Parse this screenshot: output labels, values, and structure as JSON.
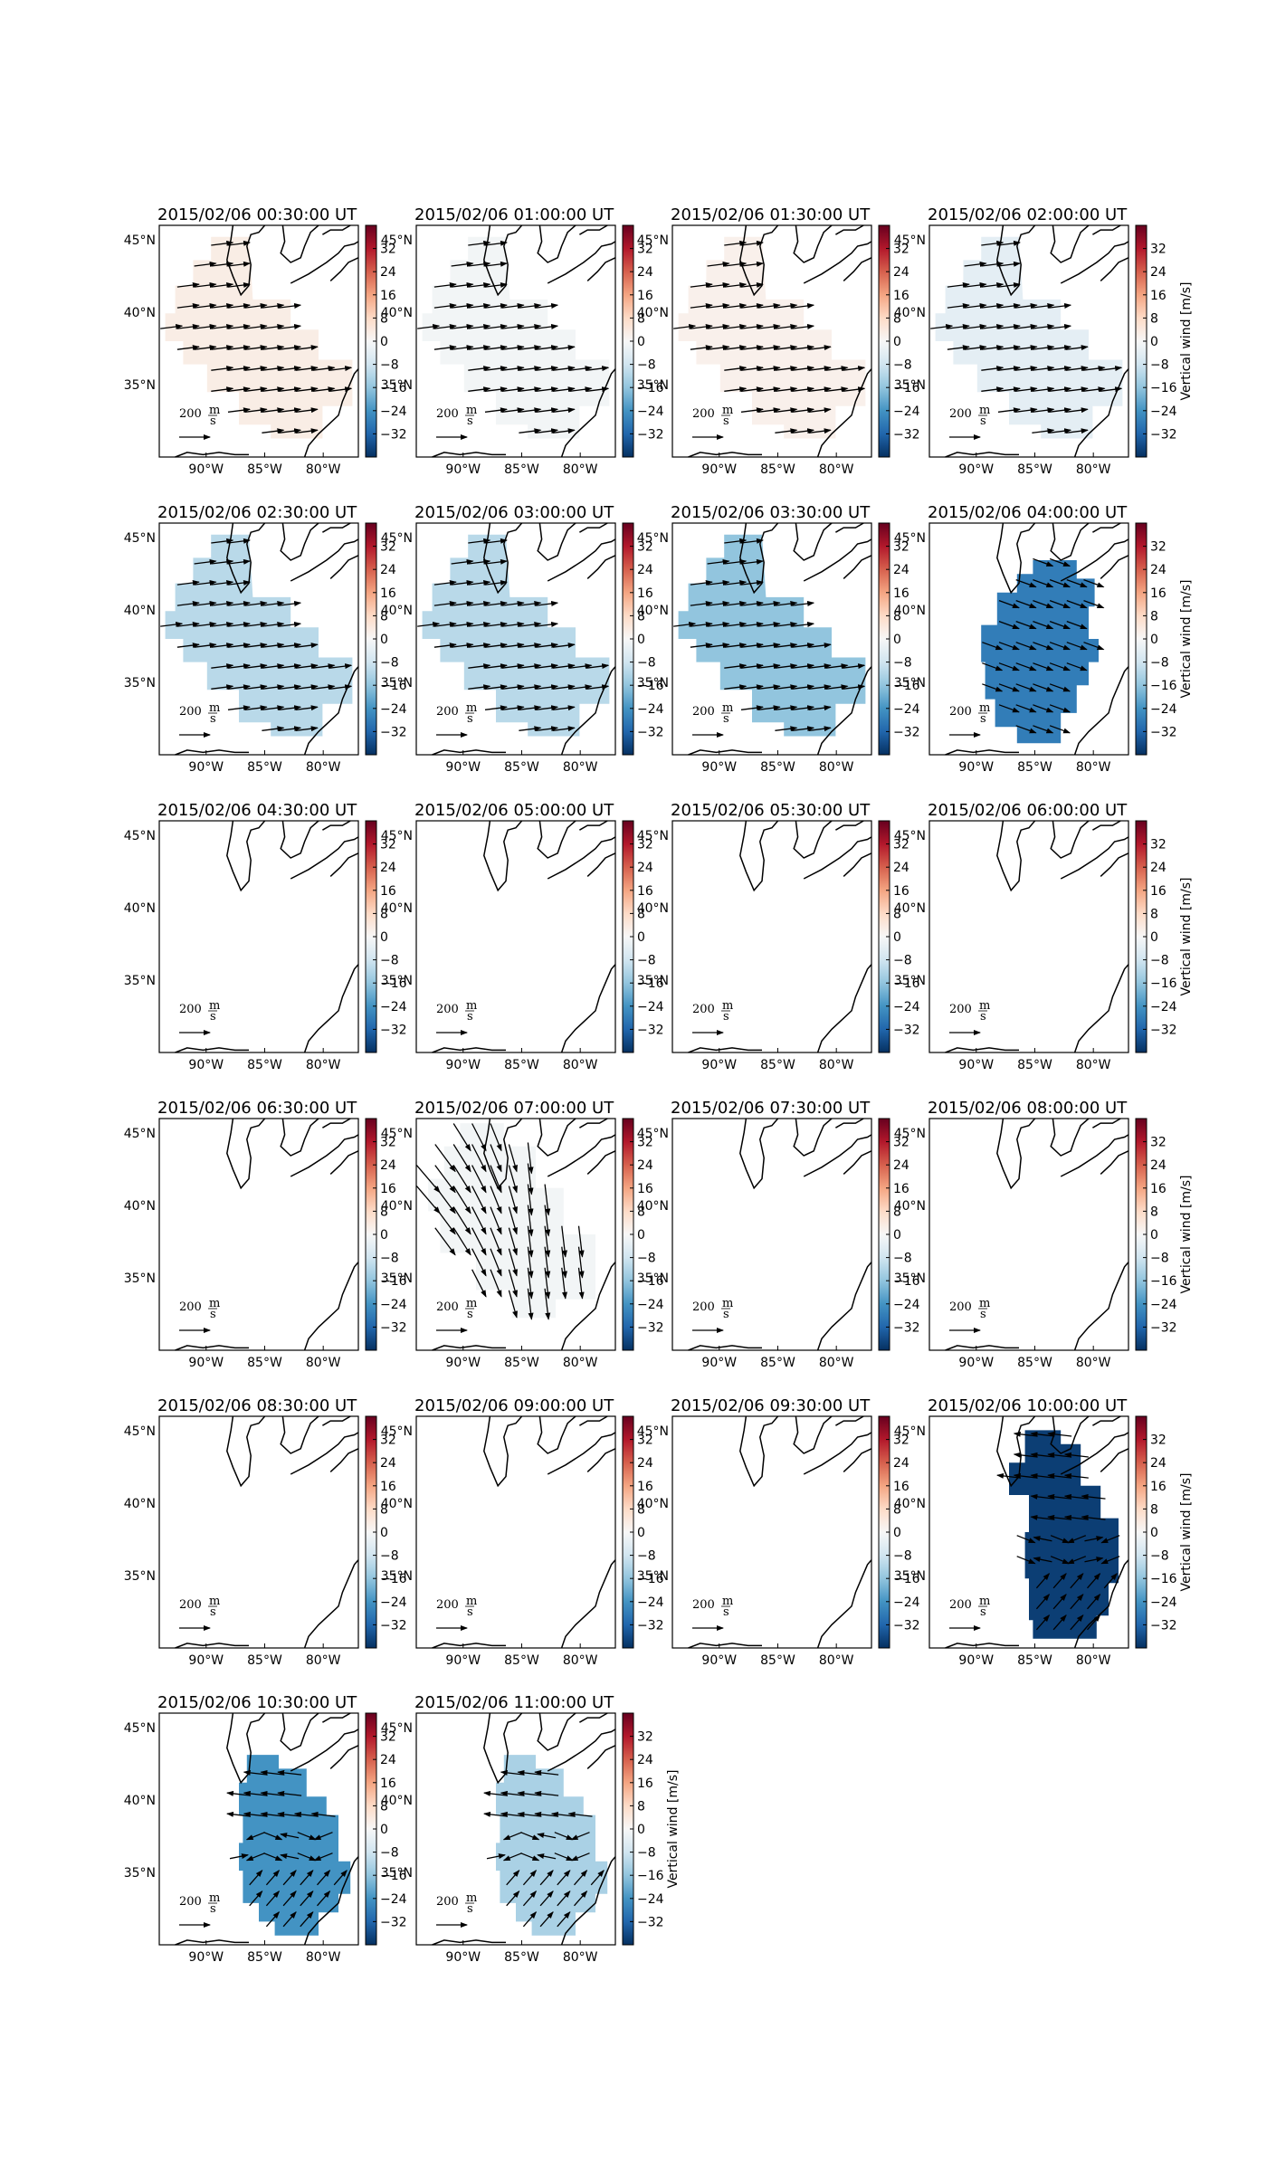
{
  "figure": {
    "colorbar_label": "Vertical wind [m/s]",
    "colorbar_ticks": [
      "32",
      "24",
      "16",
      "8",
      "0",
      "−8",
      "−16",
      "−24",
      "−32"
    ],
    "lon_ticks": [
      "90°W",
      "85°W",
      "80°W"
    ],
    "lat_ticks": [
      "45°N",
      "40°N",
      "35°N"
    ],
    "overlap_labels": [
      "45°N",
      "40°N",
      "35°N"
    ],
    "reference_vector": {
      "magnitude": "200",
      "unit_num": "m",
      "unit_den": "s"
    },
    "colormap": "RdBu_r",
    "colorbar_range": [
      -40,
      40
    ]
  },
  "chart_data": {
    "type": "heatmap",
    "projection": "lat-lon map with coastlines",
    "lon_range": [
      -94,
      -77
    ],
    "lat_range": [
      30,
      46
    ],
    "quantity": "Vertical wind [m/s]",
    "panels": [
      {
        "title": "2015/02/06 00:30:00 UT",
        "value": 3,
        "region": "A",
        "arrows": "east"
      },
      {
        "title": "2015/02/06 01:00:00 UT",
        "value": -1,
        "region": "A",
        "arrows": "east"
      },
      {
        "title": "2015/02/06 01:30:00 UT",
        "value": 2,
        "region": "A",
        "arrows": "east"
      },
      {
        "title": "2015/02/06 02:00:00 UT",
        "value": -4,
        "region": "A",
        "arrows": "east"
      },
      {
        "title": "2015/02/06 02:30:00 UT",
        "value": -11,
        "region": "A",
        "arrows": "east"
      },
      {
        "title": "2015/02/06 03:00:00 UT",
        "value": -11,
        "region": "A",
        "arrows": "east"
      },
      {
        "title": "2015/02/06 03:30:00 UT",
        "value": -16,
        "region": "A",
        "arrows": "east"
      },
      {
        "title": "2015/02/06 04:00:00 UT",
        "value": -28,
        "region": "B",
        "arrows": "southeast"
      },
      {
        "title": "2015/02/06 04:30:00 UT",
        "value": null,
        "region": "none",
        "arrows": "none"
      },
      {
        "title": "2015/02/06 05:00:00 UT",
        "value": null,
        "region": "none",
        "arrows": "none"
      },
      {
        "title": "2015/02/06 05:30:00 UT",
        "value": null,
        "region": "none",
        "arrows": "none"
      },
      {
        "title": "2015/02/06 06:00:00 UT",
        "value": null,
        "region": "none",
        "arrows": "none"
      },
      {
        "title": "2015/02/06 06:30:00 UT",
        "value": null,
        "region": "none",
        "arrows": "none"
      },
      {
        "title": "2015/02/06 07:00:00 UT",
        "value": -1,
        "region": "D",
        "arrows": "south-long"
      },
      {
        "title": "2015/02/06 07:30:00 UT",
        "value": null,
        "region": "none",
        "arrows": "none"
      },
      {
        "title": "2015/02/06 08:00:00 UT",
        "value": null,
        "region": "none",
        "arrows": "none"
      },
      {
        "title": "2015/02/06 08:30:00 UT",
        "value": null,
        "region": "none",
        "arrows": "none"
      },
      {
        "title": "2015/02/06 09:00:00 UT",
        "value": null,
        "region": "none",
        "arrows": "none"
      },
      {
        "title": "2015/02/06 09:30:00 UT",
        "value": null,
        "region": "none",
        "arrows": "none"
      },
      {
        "title": "2015/02/06 10:00:00 UT",
        "value": -38,
        "region": "C",
        "arrows": "west-mixed"
      },
      {
        "title": "2015/02/06 10:30:00 UT",
        "value": -24,
        "region": "E",
        "arrows": "west-mixed"
      },
      {
        "title": "2015/02/06 11:00:00 UT",
        "value": -13,
        "region": "E",
        "arrows": "west-mixed"
      }
    ]
  }
}
